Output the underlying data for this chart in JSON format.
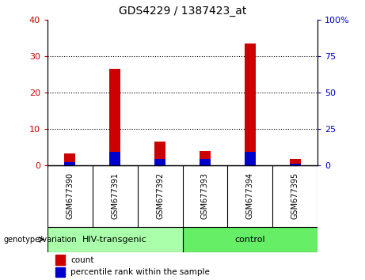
{
  "title": "GDS4229 / 1387423_at",
  "categories": [
    "GSM677390",
    "GSM677391",
    "GSM677392",
    "GSM677393",
    "GSM677394",
    "GSM677395"
  ],
  "count_values": [
    3.2,
    26.5,
    6.5,
    3.8,
    33.5,
    1.8
  ],
  "percentile_values": [
    2.0,
    9.0,
    4.5,
    4.0,
    9.0,
    1.2
  ],
  "ylim_left": [
    0,
    40
  ],
  "ylim_right": [
    0,
    100
  ],
  "yticks_left": [
    0,
    10,
    20,
    30,
    40
  ],
  "yticks_right": [
    0,
    25,
    50,
    75,
    100
  ],
  "ytick_labels_left": [
    "0",
    "10",
    "20",
    "30",
    "40"
  ],
  "ytick_labels_right": [
    "0",
    "25",
    "50",
    "75",
    "100%"
  ],
  "count_color": "#cc0000",
  "percentile_color": "#0000cc",
  "grid_color": "#000000",
  "group1_label": "HIV-transgenic",
  "group2_label": "control",
  "group1_color": "#aaffaa",
  "group2_color": "#66ee66",
  "genotype_label": "genotype/variation",
  "legend_count": "count",
  "legend_percentile": "percentile rank within the sample",
  "tick_area_color": "#cccccc",
  "plot_bg_color": "#ffffff",
  "figure_bg_color": "#ffffff",
  "bar_width": 0.25
}
